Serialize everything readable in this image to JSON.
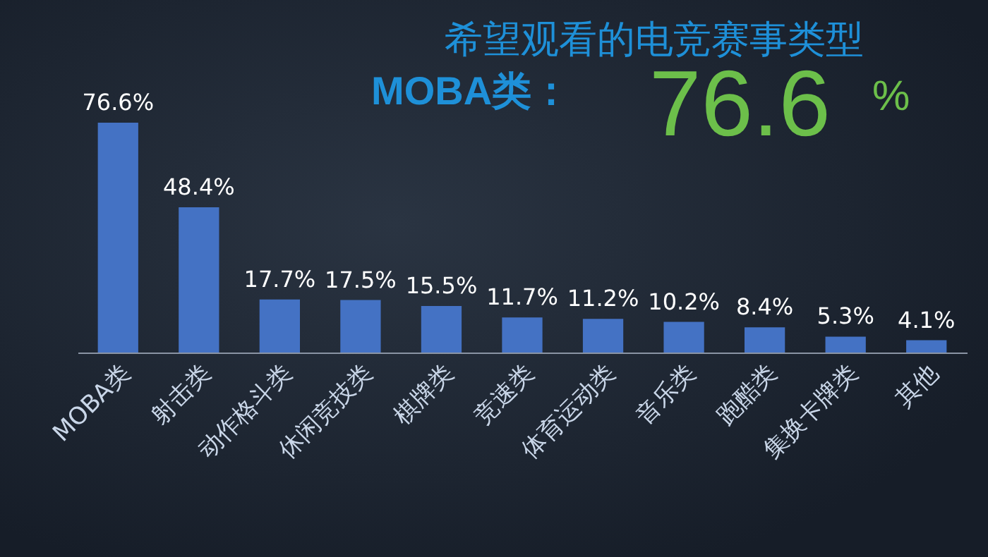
{
  "chart_data": {
    "type": "bar",
    "title": "希望观看的电竞赛事类型",
    "annotations": [
      "MOBA类：",
      "76.6",
      "%"
    ],
    "categories": [
      "MOBA类",
      "射击类",
      "动作格斗类",
      "休闲竞技类",
      "棋牌类",
      "竞速类",
      "体育运动类",
      "音乐类",
      "跑酷类",
      "集换卡牌类",
      "其他"
    ],
    "values": [
      76.6,
      48.4,
      17.7,
      17.5,
      15.5,
      11.7,
      11.2,
      10.2,
      8.4,
      5.3,
      4.1
    ],
    "value_labels": [
      "76.6%",
      "48.4%",
      "17.7%",
      "17.5%",
      "15.5%",
      "11.7%",
      "11.2%",
      "10.2%",
      "8.4%",
      "5.3%",
      "4.1%"
    ],
    "color": "#4472c4"
  }
}
